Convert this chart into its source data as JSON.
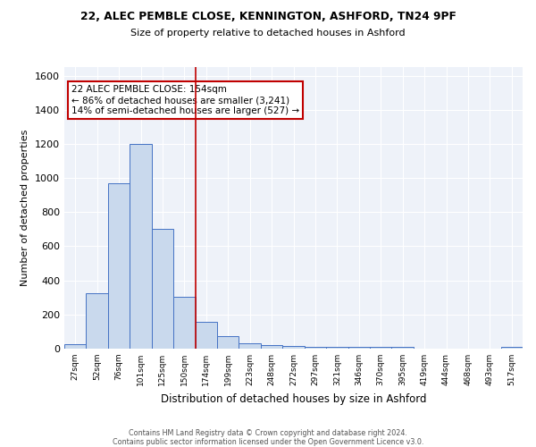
{
  "title_line1": "22, ALEC PEMBLE CLOSE, KENNINGTON, ASHFORD, TN24 9PF",
  "title_line2": "Size of property relative to detached houses in Ashford",
  "xlabel": "Distribution of detached houses by size in Ashford",
  "ylabel": "Number of detached properties",
  "footer_line1": "Contains HM Land Registry data © Crown copyright and database right 2024.",
  "footer_line2": "Contains public sector information licensed under the Open Government Licence v3.0.",
  "bin_labels": [
    "27sqm",
    "52sqm",
    "76sqm",
    "101sqm",
    "125sqm",
    "150sqm",
    "174sqm",
    "199sqm",
    "223sqm",
    "248sqm",
    "272sqm",
    "297sqm",
    "321sqm",
    "346sqm",
    "370sqm",
    "395sqm",
    "419sqm",
    "444sqm",
    "468sqm",
    "493sqm",
    "517sqm"
  ],
  "bar_heights": [
    25,
    325,
    970,
    1200,
    700,
    305,
    155,
    75,
    30,
    20,
    15,
    10,
    10,
    10,
    10,
    10,
    0,
    0,
    0,
    0,
    10
  ],
  "bar_color": "#c9d9ed",
  "bar_edge_color": "#4472c4",
  "background_color": "#eef2f9",
  "grid_color": "#ffffff",
  "red_line_x": 5.5,
  "red_line_color": "#c00000",
  "annotation_line1": "22 ALEC PEMBLE CLOSE: 154sqm",
  "annotation_line2": "← 86% of detached houses are smaller (3,241)",
  "annotation_line3": "14% of semi-detached houses are larger (527) →",
  "annotation_box_color": "#ffffff",
  "annotation_box_edge": "#c00000",
  "ylim": [
    0,
    1650
  ],
  "yticks": [
    0,
    200,
    400,
    600,
    800,
    1000,
    1200,
    1400,
    1600
  ]
}
